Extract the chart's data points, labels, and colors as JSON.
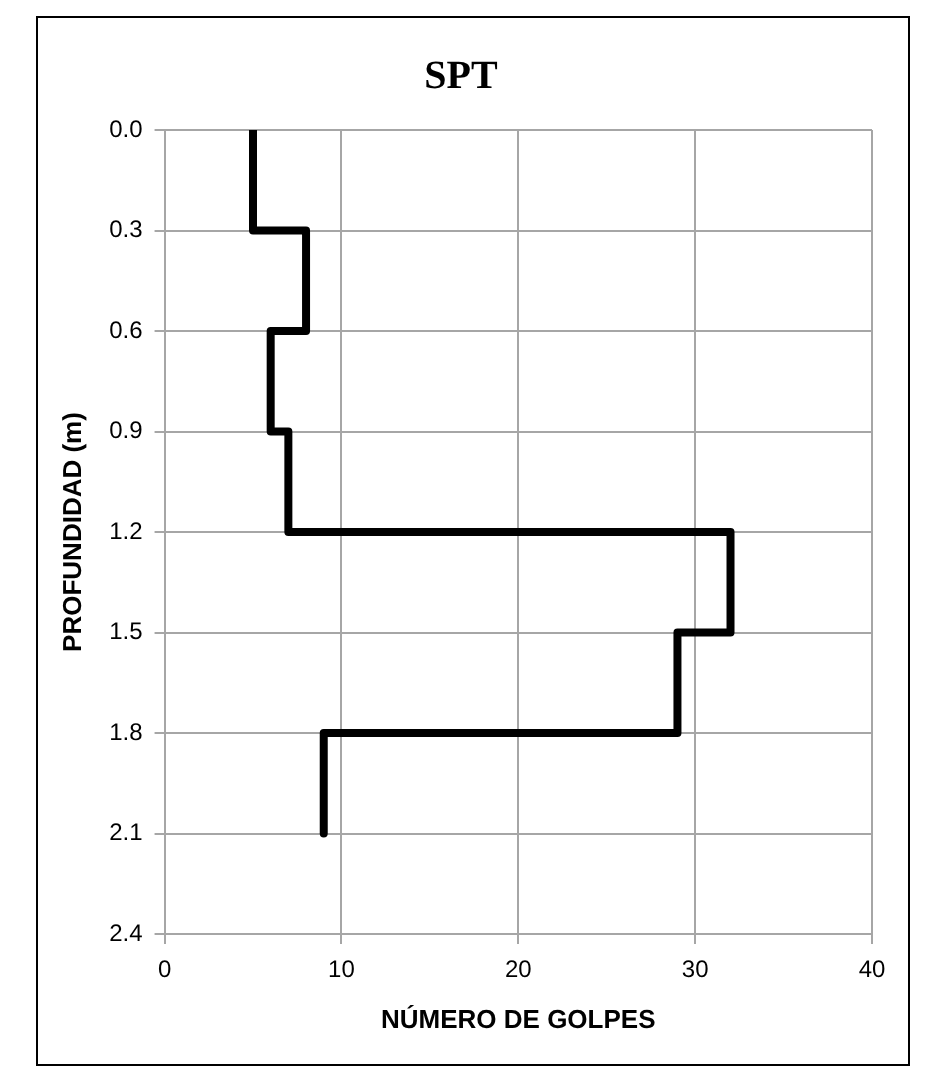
{
  "chart_data": {
    "type": "line",
    "title": "SPT",
    "xlabel": "NÚMERO DE GOLPES",
    "ylabel": "PROFUNDIDAD (m)",
    "x": [
      5,
      5,
      8,
      8,
      6,
      6,
      7,
      7,
      32,
      32,
      29,
      29,
      9,
      9
    ],
    "series": [
      {
        "color": "#000000",
        "values": [
          0,
          0.3,
          0.3,
          0.6,
          0.6,
          0.9,
          0.9,
          1.2,
          1.2,
          1.5,
          1.5,
          1.8,
          1.8,
          2.1
        ]
      }
    ],
    "xlim": [
      0,
      40
    ],
    "xticks": [
      0,
      10,
      20,
      30,
      40
    ],
    "ylim": [
      2.4,
      0
    ],
    "yticks": [
      {
        "value": 0,
        "label": "0.0"
      },
      0.3,
      0.6,
      0.9,
      1.2,
      1.5,
      1.8,
      2.1,
      2.4
    ],
    "grid": true,
    "legend": false,
    "marker": "none",
    "line_style": "solid"
  }
}
